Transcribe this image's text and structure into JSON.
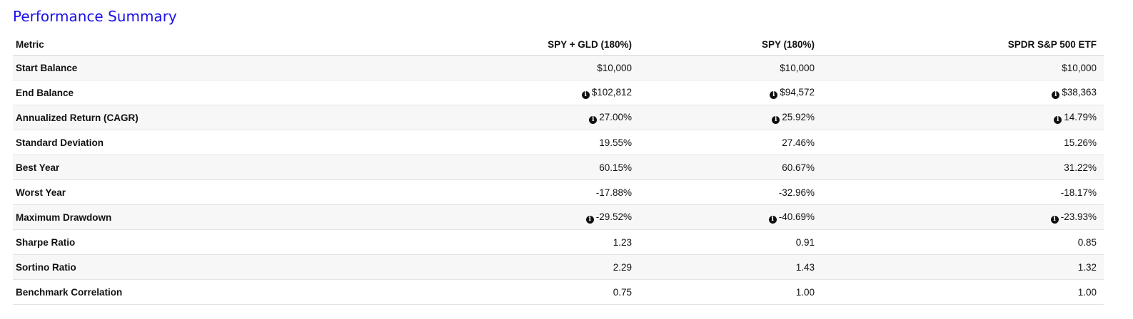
{
  "title": "Performance Summary",
  "columns": [
    "Metric",
    "SPY + GLD (180%)",
    "SPY (180%)",
    "SPDR S&P 500 ETF"
  ],
  "rows": [
    {
      "metric": "Start Balance",
      "values": [
        "$10,000",
        "$10,000",
        "$10,000"
      ],
      "info": false
    },
    {
      "metric": "End Balance",
      "values": [
        "$102,812",
        "$94,572",
        "$38,363"
      ],
      "info": true
    },
    {
      "metric": "Annualized Return (CAGR)",
      "values": [
        "27.00%",
        "25.92%",
        "14.79%"
      ],
      "info": true
    },
    {
      "metric": "Standard Deviation",
      "values": [
        "19.55%",
        "27.46%",
        "15.26%"
      ],
      "info": false
    },
    {
      "metric": "Best Year",
      "values": [
        "60.15%",
        "60.67%",
        "31.22%"
      ],
      "info": false
    },
    {
      "metric": "Worst Year",
      "values": [
        "-17.88%",
        "-32.96%",
        "-18.17%"
      ],
      "info": false
    },
    {
      "metric": "Maximum Drawdown",
      "values": [
        "-29.52%",
        "-40.69%",
        "-23.93%"
      ],
      "info": true
    },
    {
      "metric": "Sharpe Ratio",
      "values": [
        "1.23",
        "0.91",
        "0.85"
      ],
      "info": false
    },
    {
      "metric": "Sortino Ratio",
      "values": [
        "2.29",
        "1.43",
        "1.32"
      ],
      "info": false
    },
    {
      "metric": "Benchmark Correlation",
      "values": [
        "0.75",
        "1.00",
        "1.00"
      ],
      "info": false
    }
  ],
  "icons": {
    "info": "info-circle-icon"
  },
  "colors": {
    "title": "#1a10e8",
    "row_alt": "#f7f7f7",
    "border": "#e3e3e3"
  }
}
